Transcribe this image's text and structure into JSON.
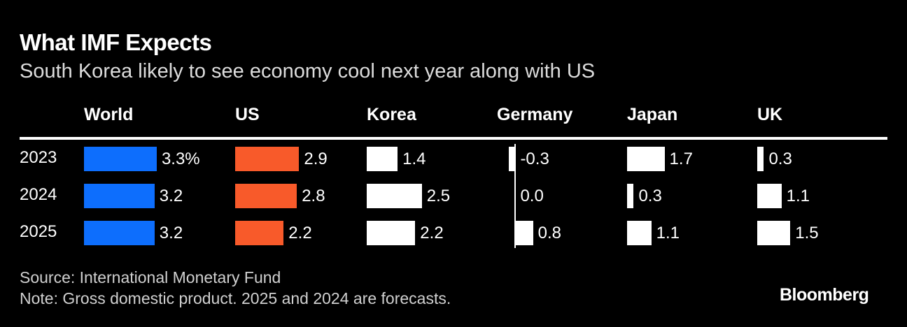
{
  "title": "What IMF Expects",
  "subtitle": "South Korea likely to see economy cool next year along with US",
  "source": "Source: International Monetary Fund",
  "note": "Note: Gross domestic product. 2025 and 2024 are forecasts.",
  "logo": "Bloomberg",
  "chart_data": {
    "type": "bar",
    "title": "What IMF Expects",
    "subtitle": "South Korea likely to see economy cool next year along with US",
    "unit": "%",
    "categories": [
      "2023",
      "2024",
      "2025"
    ],
    "series": [
      {
        "name": "World",
        "color": "#0d6efd",
        "values": [
          3.3,
          3.2,
          3.2
        ],
        "labels": [
          "3.3%",
          "3.2",
          "3.2"
        ]
      },
      {
        "name": "US",
        "color": "#f85a2a",
        "values": [
          2.9,
          2.8,
          2.2
        ],
        "labels": [
          "2.9",
          "2.8",
          "2.2"
        ]
      },
      {
        "name": "Korea",
        "color": "#ffffff",
        "values": [
          1.4,
          2.5,
          2.2
        ],
        "labels": [
          "1.4",
          "2.5",
          "2.2"
        ]
      },
      {
        "name": "Germany",
        "color": "#ffffff",
        "values": [
          -0.3,
          0.0,
          0.8
        ],
        "labels": [
          "-0.3",
          "0.0",
          "0.8"
        ]
      },
      {
        "name": "Japan",
        "color": "#ffffff",
        "values": [
          1.7,
          0.3,
          1.1
        ],
        "labels": [
          "1.7",
          "0.3",
          "1.1"
        ]
      },
      {
        "name": "UK",
        "color": "#ffffff",
        "values": [
          0.3,
          1.1,
          1.5
        ],
        "labels": [
          "0.3",
          "1.1",
          "1.5"
        ]
      }
    ],
    "xlabel": "",
    "ylabel": "",
    "grid": false,
    "legend": "none"
  }
}
